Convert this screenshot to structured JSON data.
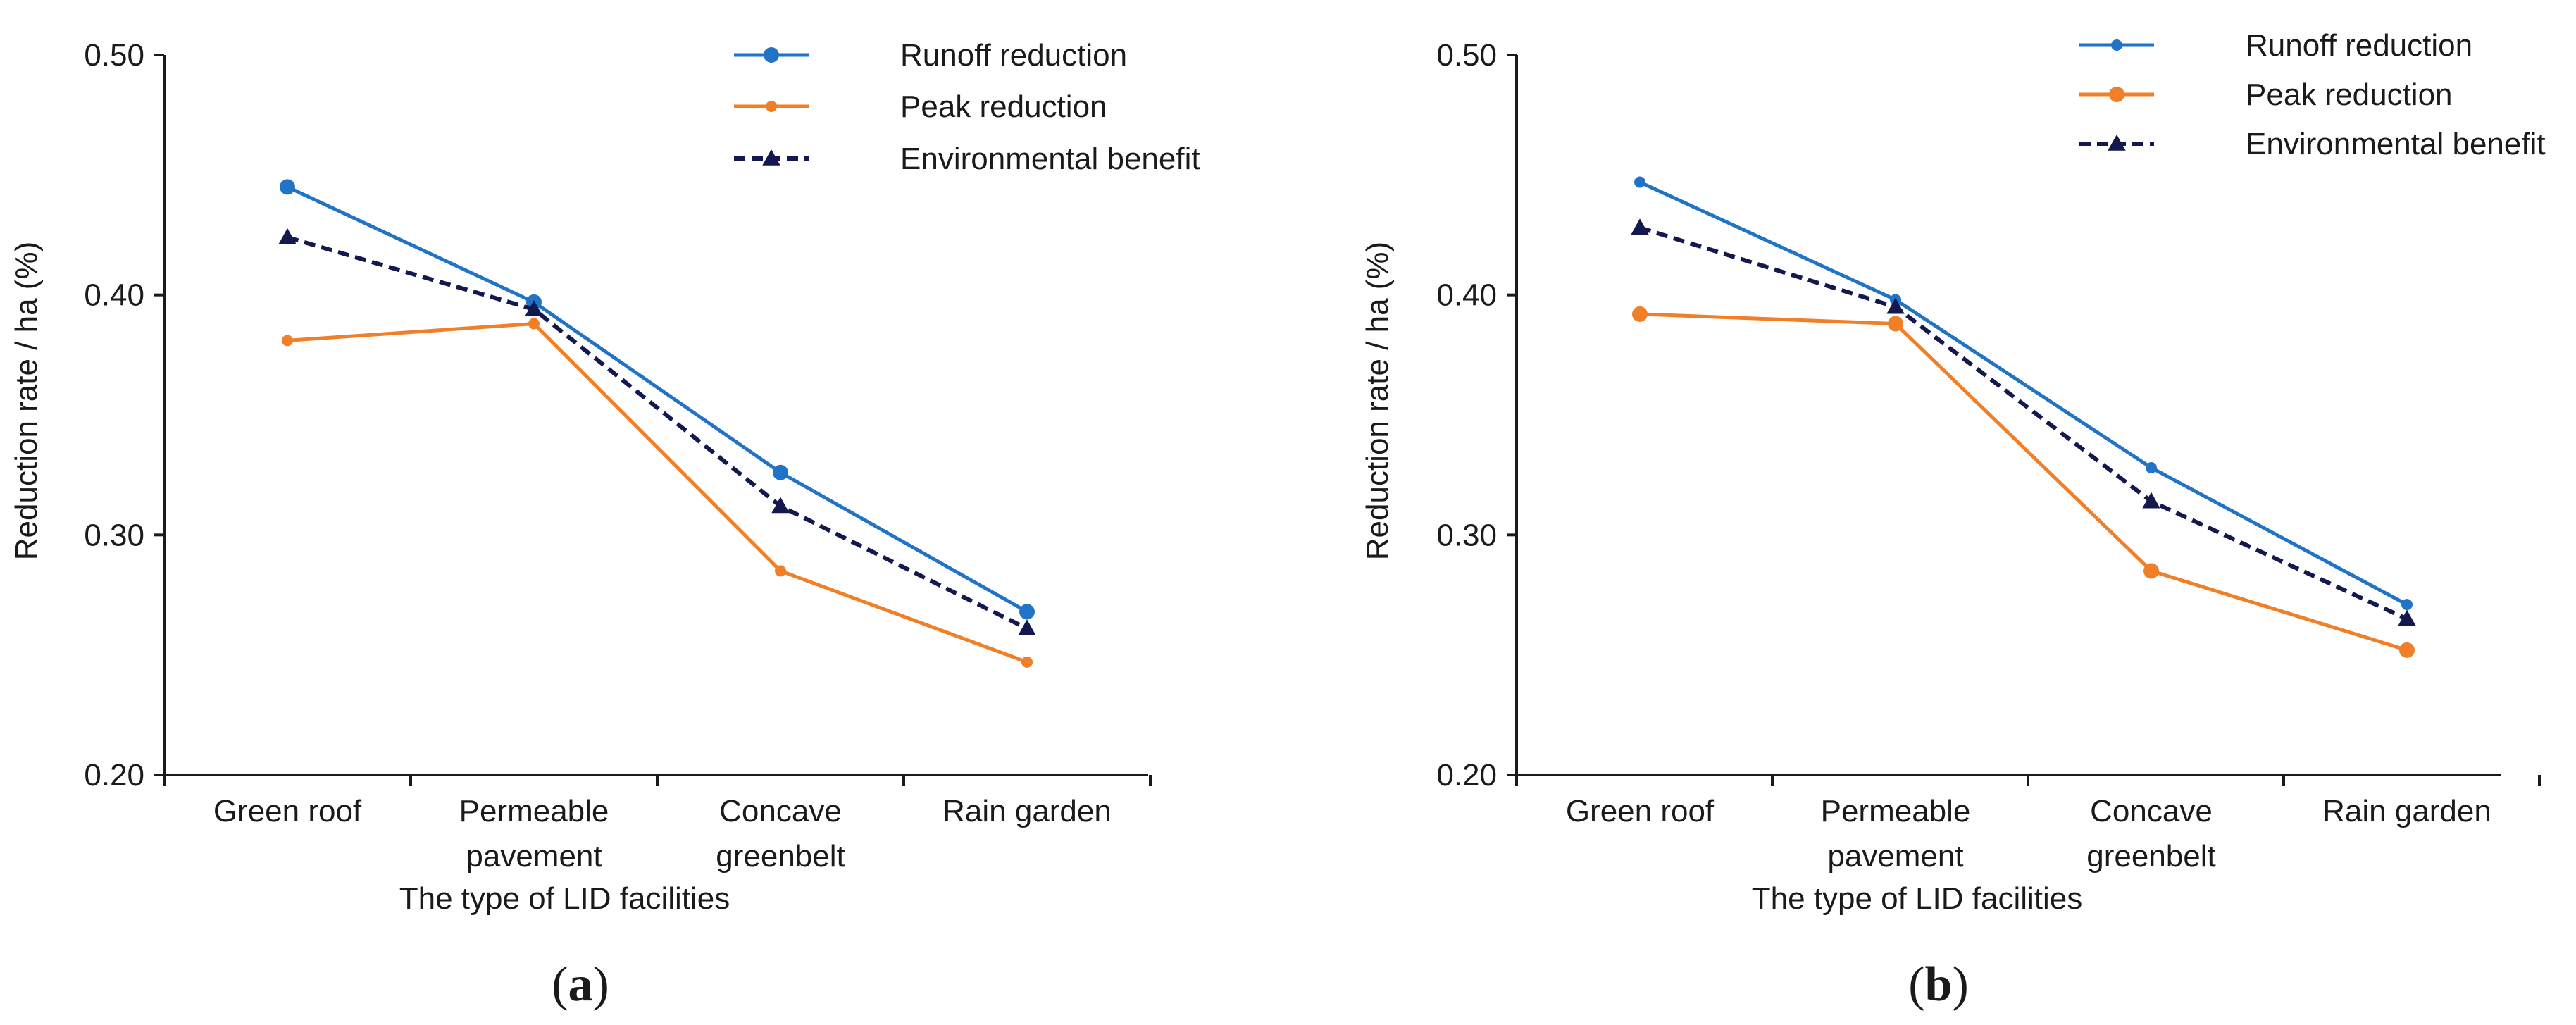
{
  "colors": {
    "runoff": "#2173c6",
    "peak": "#f07f27",
    "environmental": "#13194f",
    "axis": "#1a1a1a"
  },
  "chart_data": [
    {
      "type": "line",
      "panel_label": "a",
      "xlabel": "The type of LID facilities",
      "ylabel": "Reduction rate / ha (%)",
      "categories": [
        "Green roof",
        "Permeable pavement",
        "Concave greenbelt",
        "Rain garden"
      ],
      "category_lines": [
        [
          "Green roof"
        ],
        [
          "Permeable",
          "pavement"
        ],
        [
          "Concave",
          "greenbelt"
        ],
        [
          "Rain garden"
        ]
      ],
      "ylim": [
        0.2,
        0.5
      ],
      "yticks": [
        0.2,
        0.3,
        0.4,
        0.5
      ],
      "ytick_labels": [
        "0.20",
        "0.30",
        "0.40",
        "0.50"
      ],
      "legend_position": "top-right",
      "series": [
        {
          "name": "Runoff reduction",
          "key": "runoff",
          "values": [
            0.445,
            0.397,
            0.326,
            0.268
          ]
        },
        {
          "name": "Peak reduction",
          "key": "peak",
          "values": [
            0.381,
            0.388,
            0.285,
            0.247
          ]
        },
        {
          "name": "Environmental benefit",
          "key": "environmental",
          "values": [
            0.424,
            0.394,
            0.312,
            0.261
          ]
        }
      ]
    },
    {
      "type": "line",
      "panel_label": "b",
      "xlabel": "The type of LID facilities",
      "ylabel": "Reduction rate / ha (%)",
      "categories": [
        "Green roof",
        "Permeable pavement",
        "Concave greenbelt",
        "Rain garden"
      ],
      "category_lines": [
        [
          "Green roof"
        ],
        [
          "Permeable",
          "pavement"
        ],
        [
          "Concave",
          "greenbelt"
        ],
        [
          "Rain garden"
        ]
      ],
      "ylim": [
        0.2,
        0.5
      ],
      "yticks": [
        0.2,
        0.3,
        0.4,
        0.5
      ],
      "ytick_labels": [
        "0.20",
        "0.30",
        "0.40",
        "0.50"
      ],
      "legend_position": "top-right",
      "series": [
        {
          "name": "Runoff reduction",
          "key": "runoff",
          "values": [
            0.447,
            0.398,
            0.328,
            0.271
          ]
        },
        {
          "name": "Peak reduction",
          "key": "peak",
          "values": [
            0.392,
            0.388,
            0.285,
            0.252
          ]
        },
        {
          "name": "Environmental benefit",
          "key": "environmental",
          "values": [
            0.428,
            0.395,
            0.314,
            0.265
          ]
        }
      ]
    }
  ]
}
